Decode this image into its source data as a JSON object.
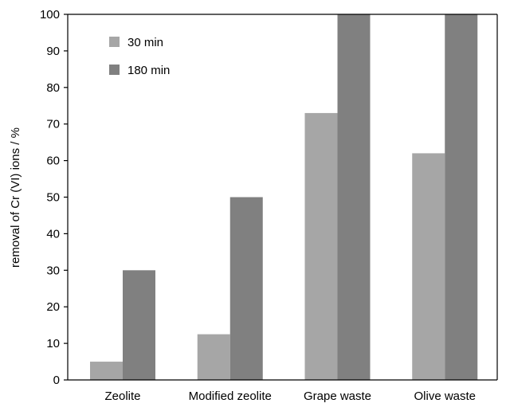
{
  "chart_data": {
    "type": "bar",
    "title": "",
    "xlabel": "",
    "ylabel": "removal of Cr (VI) ions / %",
    "categories": [
      "Zeolite",
      "Modified zeolite",
      "Grape waste",
      "Olive waste"
    ],
    "series": [
      {
        "name": "30 min",
        "values": [
          5,
          12.5,
          73,
          62
        ],
        "color": "#a6a6a6"
      },
      {
        "name": "180 min",
        "values": [
          30,
          50,
          100,
          100
        ],
        "color": "#808080"
      }
    ],
    "ylim": [
      0,
      100
    ],
    "yticks": [
      0,
      10,
      20,
      30,
      40,
      50,
      60,
      70,
      80,
      90,
      100
    ],
    "grid": false,
    "legend_position": "top-left"
  }
}
